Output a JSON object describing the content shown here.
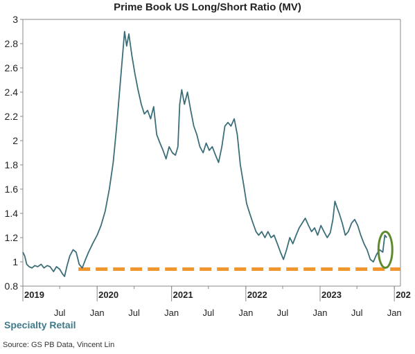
{
  "title": "Prime Book US Long/Short Ratio (MV)",
  "footer_label": "Specialty Retail",
  "source": "Source: GS PB Data, Vincent Lin",
  "colors": {
    "line": "#3b6e78",
    "baseline": "#f0962e",
    "highlight": "#5d8a2c",
    "axis": "#888888"
  },
  "chart_data": {
    "type": "line",
    "title": "Prime Book US Long/Short Ratio (MV)",
    "xlabel": "",
    "ylabel": "",
    "ylim": [
      0.8,
      3
    ],
    "xlim": [
      "2019-01-01",
      "2024-01-31"
    ],
    "yticks": [
      "3",
      "2.8",
      "2.6",
      "2.4",
      "2.2",
      "2",
      "1.8",
      "1.6",
      "1.4",
      "1.2",
      "1",
      "0.8"
    ],
    "x_year_ticks": [
      {
        "label": "2019",
        "date": "2019-01-01"
      },
      {
        "label": "2020",
        "date": "2020-01-01"
      },
      {
        "label": "2021",
        "date": "2021-01-01"
      },
      {
        "label": "2022",
        "date": "2022-01-01"
      },
      {
        "label": "2023",
        "date": "2023-01-01"
      },
      {
        "label": "202",
        "date": "2024-01-01"
      }
    ],
    "x_month_ticks": [
      {
        "label": "Jul",
        "date": "2019-07-01"
      },
      {
        "label": "Jan",
        "date": "2020-01-01"
      },
      {
        "label": "Jul",
        "date": "2020-07-01"
      },
      {
        "label": "Jan",
        "date": "2021-01-01"
      },
      {
        "label": "Jul",
        "date": "2021-07-01"
      },
      {
        "label": "Jan",
        "date": "2022-01-01"
      },
      {
        "label": "Jul",
        "date": "2022-07-01"
      },
      {
        "label": "Jan",
        "date": "2023-01-01"
      },
      {
        "label": "Jul",
        "date": "2023-07-01"
      },
      {
        "label": "Jan",
        "date": "2024-01-01"
      }
    ],
    "grid": false,
    "series": [
      {
        "points": [
          [
            "2019-01-01",
            1.08
          ],
          [
            "2019-01-10",
            1.05
          ],
          [
            "2019-01-20",
            0.98
          ],
          [
            "2019-02-01",
            0.96
          ],
          [
            "2019-02-15",
            0.95
          ],
          [
            "2019-03-01",
            0.97
          ],
          [
            "2019-03-15",
            0.96
          ],
          [
            "2019-04-01",
            0.98
          ],
          [
            "2019-04-15",
            0.95
          ],
          [
            "2019-05-01",
            0.97
          ],
          [
            "2019-05-15",
            0.96
          ],
          [
            "2019-06-01",
            0.92
          ],
          [
            "2019-06-15",
            0.96
          ],
          [
            "2019-07-01",
            0.94
          ],
          [
            "2019-07-15",
            0.9
          ],
          [
            "2019-07-25",
            0.88
          ],
          [
            "2019-08-05",
            0.96
          ],
          [
            "2019-08-20",
            1.05
          ],
          [
            "2019-09-05",
            1.1
          ],
          [
            "2019-09-20",
            1.08
          ],
          [
            "2019-10-05",
            0.98
          ],
          [
            "2019-10-20",
            0.95
          ],
          [
            "2019-11-05",
            1.02
          ],
          [
            "2019-11-20",
            1.08
          ],
          [
            "2019-12-10",
            1.15
          ],
          [
            "2020-01-01",
            1.22
          ],
          [
            "2020-01-20",
            1.3
          ],
          [
            "2020-02-10",
            1.42
          ],
          [
            "2020-03-01",
            1.6
          ],
          [
            "2020-03-20",
            1.82
          ],
          [
            "2020-04-05",
            2.1
          ],
          [
            "2020-04-20",
            2.4
          ],
          [
            "2020-05-01",
            2.62
          ],
          [
            "2020-05-15",
            2.9
          ],
          [
            "2020-05-25",
            2.78
          ],
          [
            "2020-06-05",
            2.88
          ],
          [
            "2020-06-20",
            2.7
          ],
          [
            "2020-07-05",
            2.55
          ],
          [
            "2020-07-20",
            2.42
          ],
          [
            "2020-08-05",
            2.3
          ],
          [
            "2020-08-20",
            2.22
          ],
          [
            "2020-09-05",
            2.25
          ],
          [
            "2020-09-20",
            2.18
          ],
          [
            "2020-10-05",
            2.28
          ],
          [
            "2020-10-20",
            2.05
          ],
          [
            "2020-11-05",
            1.98
          ],
          [
            "2020-11-20",
            1.92
          ],
          [
            "2020-12-05",
            1.85
          ],
          [
            "2020-12-20",
            1.95
          ],
          [
            "2021-01-05",
            1.9
          ],
          [
            "2021-01-20",
            1.88
          ],
          [
            "2021-02-01",
            1.95
          ],
          [
            "2021-02-10",
            2.3
          ],
          [
            "2021-02-20",
            2.42
          ],
          [
            "2021-03-05",
            2.3
          ],
          [
            "2021-03-20",
            2.4
          ],
          [
            "2021-04-05",
            2.25
          ],
          [
            "2021-04-20",
            2.12
          ],
          [
            "2021-05-05",
            2.05
          ],
          [
            "2021-05-20",
            1.95
          ],
          [
            "2021-06-05",
            1.9
          ],
          [
            "2021-06-20",
            1.98
          ],
          [
            "2021-07-05",
            1.92
          ],
          [
            "2021-07-20",
            1.95
          ],
          [
            "2021-08-05",
            1.88
          ],
          [
            "2021-08-20",
            1.82
          ],
          [
            "2021-09-05",
            1.95
          ],
          [
            "2021-09-20",
            2.12
          ],
          [
            "2021-10-05",
            2.15
          ],
          [
            "2021-10-20",
            2.12
          ],
          [
            "2021-11-05",
            2.18
          ],
          [
            "2021-11-20",
            2.05
          ],
          [
            "2021-12-05",
            1.8
          ],
          [
            "2021-12-20",
            1.65
          ],
          [
            "2022-01-05",
            1.48
          ],
          [
            "2022-01-20",
            1.4
          ],
          [
            "2022-02-05",
            1.32
          ],
          [
            "2022-02-20",
            1.25
          ],
          [
            "2022-03-05",
            1.22
          ],
          [
            "2022-03-20",
            1.25
          ],
          [
            "2022-04-05",
            1.2
          ],
          [
            "2022-04-20",
            1.25
          ],
          [
            "2022-05-05",
            1.2
          ],
          [
            "2022-05-20",
            1.22
          ],
          [
            "2022-06-05",
            1.15
          ],
          [
            "2022-06-20",
            1.08
          ],
          [
            "2022-07-05",
            1.02
          ],
          [
            "2022-07-20",
            1.1
          ],
          [
            "2022-08-05",
            1.2
          ],
          [
            "2022-08-20",
            1.15
          ],
          [
            "2022-09-05",
            1.22
          ],
          [
            "2022-09-20",
            1.28
          ],
          [
            "2022-10-05",
            1.32
          ],
          [
            "2022-10-20",
            1.36
          ],
          [
            "2022-11-05",
            1.3
          ],
          [
            "2022-11-20",
            1.25
          ],
          [
            "2022-12-05",
            1.28
          ],
          [
            "2022-12-20",
            1.22
          ],
          [
            "2023-01-05",
            1.3
          ],
          [
            "2023-01-20",
            1.25
          ],
          [
            "2023-02-05",
            1.2
          ],
          [
            "2023-02-20",
            1.24
          ],
          [
            "2023-03-05",
            1.35
          ],
          [
            "2023-03-15",
            1.5
          ],
          [
            "2023-03-25",
            1.45
          ],
          [
            "2023-04-05",
            1.4
          ],
          [
            "2023-04-20",
            1.32
          ],
          [
            "2023-05-05",
            1.22
          ],
          [
            "2023-05-20",
            1.25
          ],
          [
            "2023-06-05",
            1.32
          ],
          [
            "2023-06-20",
            1.35
          ],
          [
            "2023-07-05",
            1.3
          ],
          [
            "2023-07-20",
            1.22
          ],
          [
            "2023-08-05",
            1.15
          ],
          [
            "2023-08-20",
            1.1
          ],
          [
            "2023-09-05",
            1.02
          ],
          [
            "2023-09-20",
            1.0
          ],
          [
            "2023-10-05",
            1.06
          ],
          [
            "2023-10-20",
            1.1
          ],
          [
            "2023-11-05",
            1.08
          ],
          [
            "2023-11-15",
            1.22
          ],
          [
            "2023-11-25",
            1.2
          ]
        ]
      }
    ],
    "reference_line": {
      "y": 0.94,
      "x_start": "2019-10-01",
      "x_end": "2024-01-31",
      "style": "dashed"
    },
    "highlight": {
      "type": "ellipse",
      "x": "2023-11-18",
      "y": 1.1
    }
  }
}
